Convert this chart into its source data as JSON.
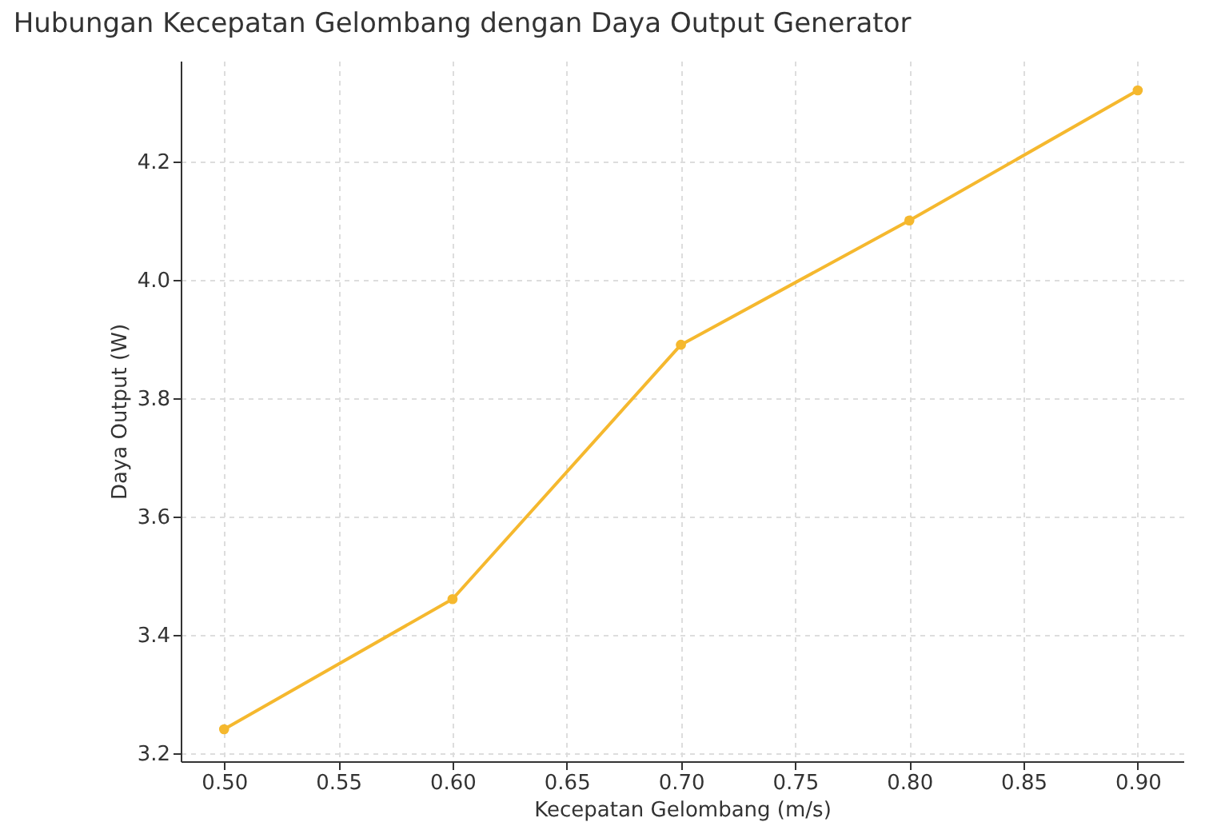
{
  "chart_data": {
    "type": "line",
    "title": "Hubungan Kecepatan Gelombang dengan Daya Output Generator",
    "xlabel": "Kecepatan Gelombang (m/s)",
    "ylabel": "Daya Output (W)",
    "x": [
      0.5,
      0.6,
      0.7,
      0.8,
      0.9
    ],
    "series": [
      {
        "color": "#f5b82e",
        "values": [
          3.24,
          3.46,
          3.89,
          4.1,
          4.32
        ]
      }
    ],
    "xlim": [
      0.481,
      0.92
    ],
    "ylim": [
      3.186,
      4.37
    ],
    "xticks": [
      {
        "value": 0.5,
        "label": "0.50"
      },
      {
        "value": 0.55,
        "label": "0.55"
      },
      {
        "value": 0.6,
        "label": "0.60"
      },
      {
        "value": 0.65,
        "label": "0.65"
      },
      {
        "value": 0.7,
        "label": "0.70"
      },
      {
        "value": 0.75,
        "label": "0.75"
      },
      {
        "value": 0.8,
        "label": "0.80"
      },
      {
        "value": 0.85,
        "label": "0.85"
      },
      {
        "value": 0.9,
        "label": "0.90"
      }
    ],
    "yticks": [
      3.2,
      3.4,
      3.6,
      3.8,
      {
        "value": 4,
        "label": "4.0"
      },
      4.2
    ],
    "grid": true,
    "marker": "circle",
    "line_style": "solid"
  }
}
